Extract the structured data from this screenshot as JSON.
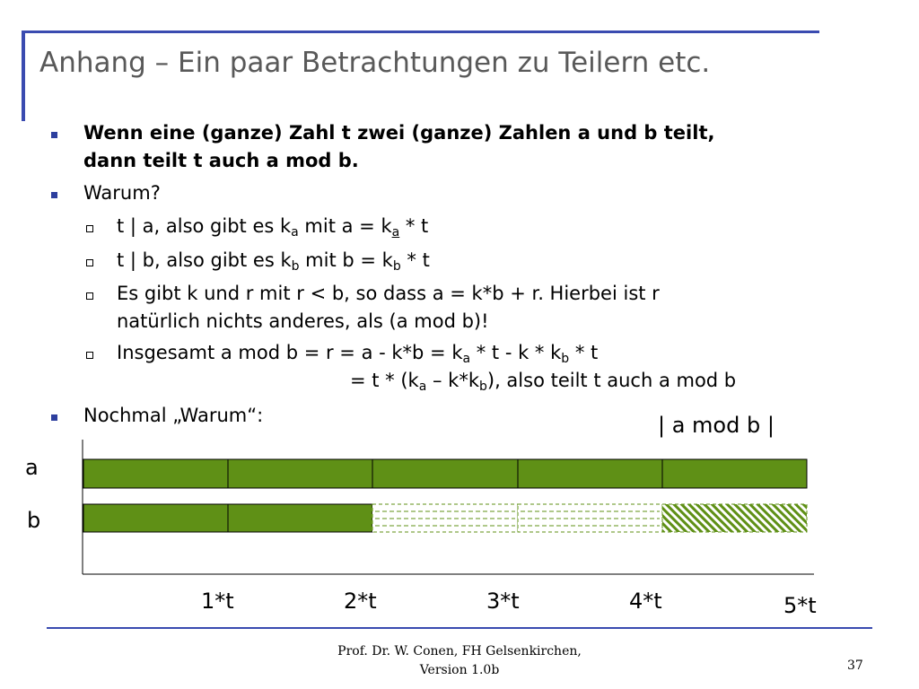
{
  "title": "Anhang – Ein paar Betrachtungen zu Teilern etc.",
  "bullets": {
    "b1_line1": "Wenn eine (ganze) Zahl t zwei (ganze) Zahlen a und b teilt,",
    "b1_line2": "dann teilt t auch a mod b.",
    "b2": "Warum?",
    "s1_pre": "t | a, also gibt es k",
    "s1_sub1": "a",
    "s1_mid": " mit a = k",
    "s1_sub2": "a",
    "s1_post": " * t",
    "s2_pre": "t | b, also gibt es k",
    "s2_sub1": "b",
    "s2_mid": " mit b = k",
    "s2_sub2": "b",
    "s2_post": " * t",
    "s3_line1": "Es gibt k und r mit r < b, so dass a = k*b + r. Hierbei ist r",
    "s3_line2": "natürlich nichts anderes, als (a mod b)!",
    "s4_pre": "Insgesamt a mod b = r = a - k*b = k",
    "s4_sub1": "a",
    "s4_mid": " * t - k * k",
    "s4_sub2": "b",
    "s4_post": " * t",
    "s4_l2_pre": "= t * (k",
    "s4_l2_sub1": "a",
    "s4_l2_mid": " – k*k",
    "s4_l2_sub2": "b",
    "s4_l2_post": "), also teilt t auch a mod b",
    "b3": "Nochmal „Warum“:"
  },
  "diagram": {
    "mod_label": "| a mod b  |",
    "label_a": "a",
    "label_b": "b",
    "tick_labels": [
      "1*t",
      "2*t",
      "3*t",
      "4*t",
      "5*t"
    ],
    "colors": {
      "fill": "#5f9016",
      "border": "#000000",
      "dashed": "#5f9016"
    }
  },
  "footer": {
    "line1": "Prof. Dr. W. Conen, FH Gelsenkirchen,",
    "line2": "Version 1.0b",
    "page": "37"
  }
}
